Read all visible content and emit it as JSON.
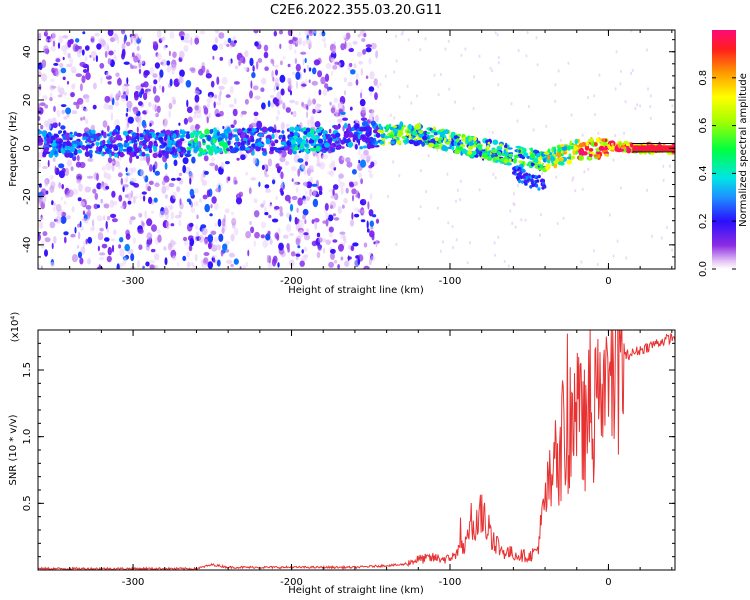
{
  "figure_title": "C2E6.2022.355.03.20.G11",
  "colorbar": {
    "label": "Normalized spectral amplitude",
    "ticks": [
      "0.0",
      "0.2",
      "0.4",
      "0.6",
      "0.8"
    ],
    "tick_values": [
      0.0,
      0.2,
      0.4,
      0.6,
      0.8
    ]
  },
  "chart_data": [
    {
      "type": "heatmap",
      "xlabel": "Height of straight line (km)",
      "ylabel": "Frequency (Hz)",
      "xlim": [
        -360,
        42
      ],
      "ylim": [
        -50,
        49
      ],
      "xticks": [
        -300,
        -200,
        -100,
        0
      ],
      "xtick_labels": [
        "-300",
        "-200",
        "-100",
        "0"
      ],
      "yticks": [
        -40,
        -20,
        0,
        20,
        40
      ],
      "ytick_labels": [
        "-40",
        "-20",
        "0",
        "20",
        "40"
      ],
      "colormap": "rainbow (0 = white/violet, 1 = red)",
      "colorbar_label": "Normalized spectral amplitude",
      "noise_region_x": [
        -360,
        -145
      ],
      "dominant_frequency_track": {
        "x": [
          -360,
          -300,
          -260,
          -240,
          -200,
          -180,
          -140,
          -120,
          -100,
          -80,
          -60,
          -40,
          -20,
          0,
          20,
          42
        ],
        "y": [
          2,
          2,
          2,
          3,
          3,
          4,
          6,
          6,
          3,
          0,
          -3,
          -5,
          -1,
          1,
          0,
          0
        ]
      },
      "secondary_branch": {
        "x": [
          -60,
          -50,
          -40
        ],
        "y": [
          -10,
          -13,
          -15
        ]
      },
      "grid": false
    },
    {
      "type": "line",
      "xlabel": "Height of straight line (km)",
      "ylabel": "SNR (10 * v/v)",
      "y_scale_label": "(x10⁴)",
      "xlim": [
        -360,
        42
      ],
      "ylim": [
        0,
        1.8
      ],
      "xticks": [
        -300,
        -200,
        -100,
        0
      ],
      "xtick_labels": [
        "-300",
        "-200",
        "-100",
        "0"
      ],
      "yticks": [
        0.5,
        1.0,
        1.5
      ],
      "ytick_labels": [
        "0.5",
        "1.0",
        "1.5"
      ],
      "color": "#e83232",
      "series": [
        {
          "x": [
            -360,
            -300,
            -260,
            -250,
            -240,
            -200,
            -160,
            -130,
            -120,
            -110,
            -100,
            -90,
            -82,
            -75,
            -68,
            -60,
            -50,
            -45,
            -40,
            -35,
            -30,
            -25,
            -20,
            -15,
            -10,
            -5,
            0,
            5,
            10,
            20,
            30,
            42
          ],
          "values": [
            0.01,
            0.01,
            0.01,
            0.04,
            0.02,
            0.02,
            0.02,
            0.04,
            0.08,
            0.09,
            0.08,
            0.18,
            0.45,
            0.3,
            0.15,
            0.12,
            0.1,
            0.15,
            0.5,
            0.75,
            0.9,
            1.05,
            1.15,
            1.05,
            1.15,
            1.25,
            1.45,
            1.55,
            1.6,
            1.65,
            1.7,
            1.75
          ]
        }
      ],
      "grid": false
    }
  ]
}
